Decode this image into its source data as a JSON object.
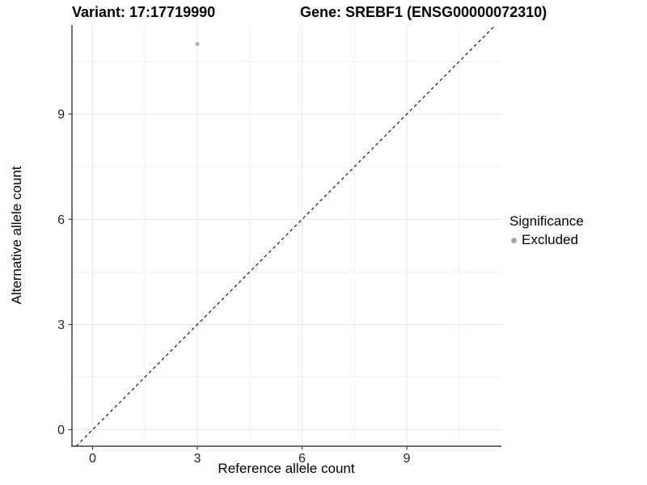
{
  "figure": {
    "title_variant": "Variant: 17:17719990",
    "title_gene": "Gene: SREBF1 (ENSG00000072310)"
  },
  "chart_data": {
    "type": "scatter",
    "titles": [
      "Variant: 17:17719990",
      "Gene: SREBF1 (ENSG00000072310)"
    ],
    "xlabel": "Reference allele count",
    "ylabel": "Alternative allele count",
    "xticks": [
      0,
      3,
      6,
      9
    ],
    "yticks": [
      0,
      3,
      6,
      9
    ],
    "x_minor": [
      1.5,
      4.5,
      7.5,
      10.5
    ],
    "y_minor": [
      1.5,
      4.5,
      7.5,
      10.5
    ],
    "xlim": [
      -0.59,
      11.71
    ],
    "ylim": [
      -0.47,
      11.54
    ],
    "grid": "major and minor, light gray, white panel background",
    "series": [
      {
        "name": "Excluded",
        "color": "#b0b0b0",
        "points": [
          {
            "x": 3,
            "y": 11
          }
        ]
      }
    ],
    "reference_line": {
      "description": "identity line y = x",
      "slope": 1,
      "intercept": 0,
      "style": "dashed",
      "color": "#1a1a1a"
    },
    "legend": {
      "position": "right",
      "title": "Significance",
      "entries": [
        {
          "label": "Excluded",
          "color": "#a8a8a8"
        }
      ]
    }
  },
  "colors": {
    "grid_major": "#e7e7e7",
    "grid_minor": "#f1f1f1",
    "axis_line": "#404040",
    "tick_mark": "#404040",
    "tick_label": "#262626",
    "background": "#ffffff"
  }
}
